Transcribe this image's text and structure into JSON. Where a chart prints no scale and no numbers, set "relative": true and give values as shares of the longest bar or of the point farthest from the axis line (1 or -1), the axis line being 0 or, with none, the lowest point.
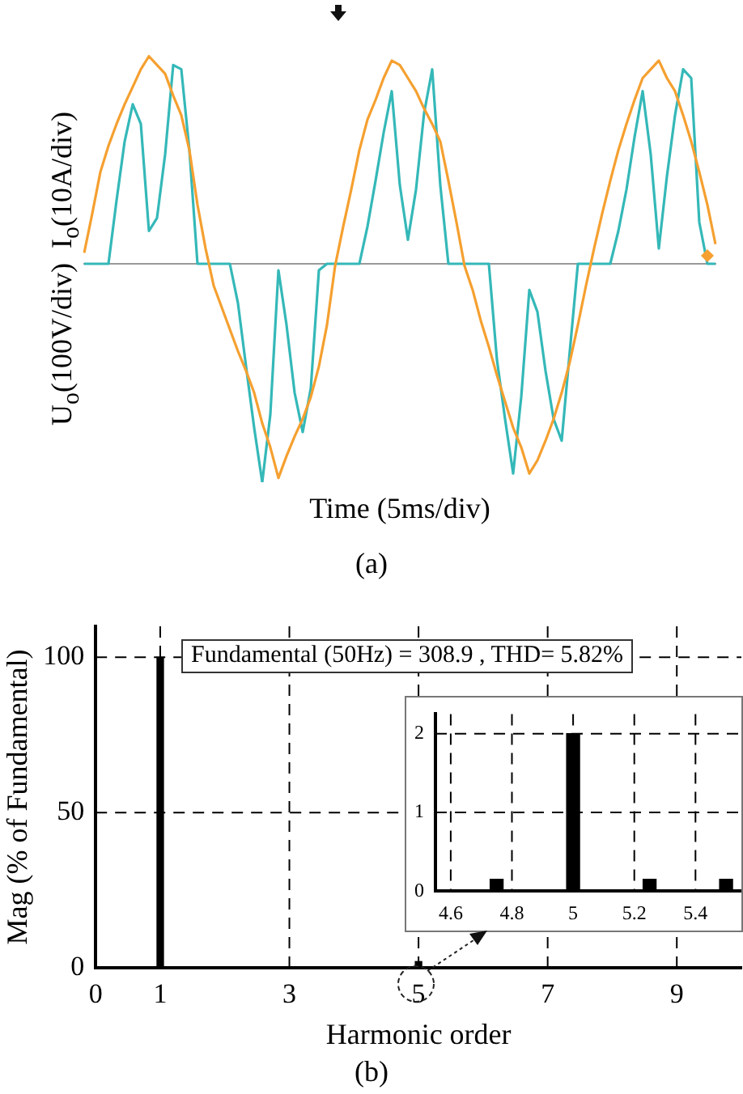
{
  "chart_data": [
    {
      "type": "line",
      "relative": true,
      "xlabel": "Time (5ms/div)",
      "ylabel": "U$_{o}$(100V/div)  I$_{o}$(10A/div)",
      "annotations": [
        "(a)"
      ],
      "marker": "none",
      "line_style": "solid",
      "categories": [
        null,
        null,
        null,
        null,
        null,
        null,
        null,
        null,
        null,
        null,
        null,
        null,
        null,
        null,
        null,
        null,
        null,
        null,
        null,
        null,
        null,
        null,
        null,
        null,
        null,
        null,
        null,
        null,
        null,
        null,
        null,
        null,
        null,
        null,
        null,
        null,
        null,
        null,
        null,
        null,
        null,
        null,
        null,
        null,
        null,
        null,
        null,
        null,
        null,
        null,
        null,
        null,
        null,
        null,
        null,
        null,
        null,
        null,
        null,
        null,
        null,
        null,
        null,
        null,
        null,
        null,
        null,
        null,
        null,
        null,
        null,
        null,
        null,
        null,
        null,
        null,
        null,
        null,
        null
      ],
      "series": [
        {
          "color": "#f5a030",
          "values": [
            0.05,
            0.23,
            0.42,
            0.54,
            0.64,
            0.73,
            0.81,
            0.89,
            0.95,
            0.91,
            0.87,
            0.77,
            0.68,
            0.52,
            0.27,
            0.07,
            -0.1,
            -0.2,
            -0.3,
            -0.4,
            -0.49,
            -0.59,
            -0.73,
            -0.84,
            -0.98,
            -0.88,
            -0.79,
            -0.71,
            -0.61,
            -0.47,
            -0.28,
            -0.01,
            0.17,
            0.34,
            0.52,
            0.66,
            0.75,
            0.85,
            0.93,
            0.91,
            0.85,
            0.79,
            0.71,
            0.64,
            0.56,
            0.38,
            0.19,
            -0.01,
            -0.12,
            -0.26,
            -0.38,
            -0.51,
            -0.63,
            -0.75,
            -0.84,
            -0.96,
            -0.9,
            -0.81,
            -0.71,
            -0.59,
            -0.45,
            -0.28,
            -0.1,
            0.07,
            0.23,
            0.38,
            0.52,
            0.64,
            0.75,
            0.85,
            0.89,
            0.93,
            0.85,
            0.79,
            0.68,
            0.56,
            0.42,
            0.27,
            0.09
          ]
        },
        {
          "color": "#35b8b8",
          "values": [
            0,
            0,
            0,
            0,
            0.29,
            0.56,
            0.73,
            0.64,
            0.15,
            0.21,
            0.5,
            0.91,
            0.89,
            0.52,
            0,
            0,
            0,
            0,
            0,
            -0.18,
            -0.47,
            -0.75,
            -1,
            -0.69,
            -0.03,
            -0.28,
            -0.59,
            -0.77,
            -0.57,
            -0.03,
            0,
            0,
            0,
            0,
            0,
            0.17,
            0.38,
            0.6,
            0.79,
            0.36,
            0.11,
            0.34,
            0.69,
            0.89,
            0.36,
            0,
            0,
            0,
            0,
            0,
            0,
            -0.44,
            -0.71,
            -0.96,
            -0.61,
            -0.12,
            -0.22,
            -0.49,
            -0.71,
            -0.81,
            -0.4,
            0,
            0,
            0,
            0,
            0,
            0.15,
            0.34,
            0.58,
            0.79,
            0.5,
            0.07,
            0.4,
            0.68,
            0.89,
            0.85,
            0.19,
            0,
            0
          ]
        }
      ]
    },
    {
      "type": "bar",
      "x": [
        1,
        5
      ],
      "values": [
        100,
        2
      ],
      "color": "#000000",
      "xlim": [
        0,
        10
      ],
      "xticks": [
        0,
        1,
        3,
        5,
        7,
        9
      ],
      "ylim": [
        0,
        110
      ],
      "yticks": [
        0,
        50,
        100
      ],
      "grid": true,
      "xlabel": "Harmonic order",
      "ylabel": "Mag (% of Fundamental)",
      "annotations": [
        "Fundamental (50Hz) = 308.9 , THD= 5.82%",
        "(b)"
      ]
    },
    {
      "type": "bar",
      "x": [
        4.75,
        5,
        5.25,
        5.5
      ],
      "values": [
        0.15,
        2,
        0.15,
        0.15
      ],
      "color": "#000000",
      "xlim": [
        4.55,
        5.55
      ],
      "xticks": [
        4.6,
        4.8,
        5,
        5.2,
        5.4
      ],
      "ylim": [
        0,
        2.25
      ],
      "yticks": [
        0,
        1,
        2
      ],
      "grid": true
    }
  ]
}
